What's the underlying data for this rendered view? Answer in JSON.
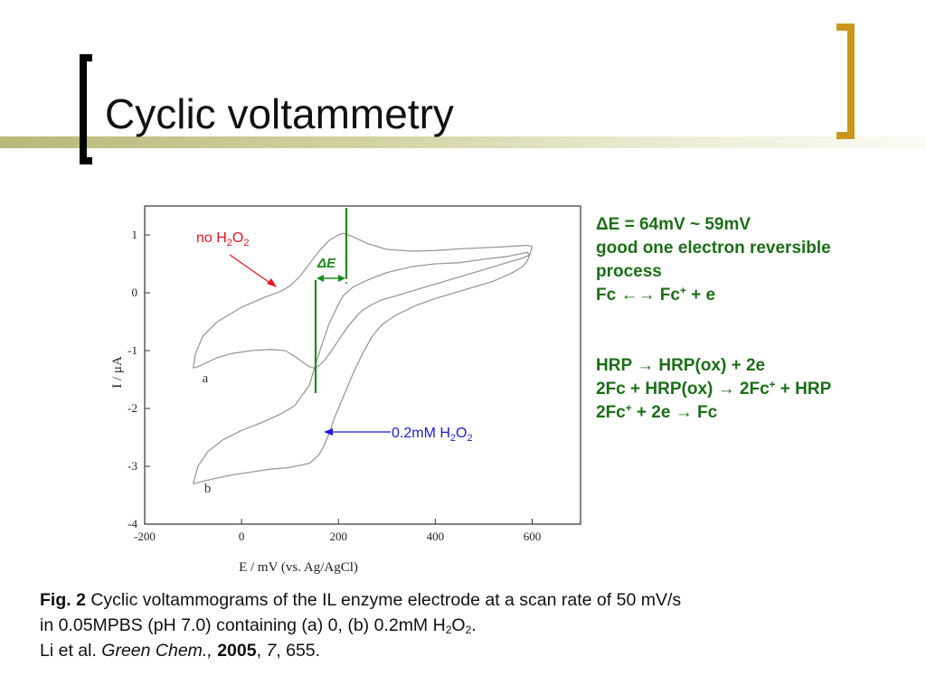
{
  "slide": {
    "title": "Cyclic voltammetry"
  },
  "notes": {
    "delta_e": "ΔE = 64mV ~ 59mV",
    "reversible_1": "good one electron reversible",
    "reversible_2": "process",
    "fc_left": "Fc",
    "fc_right_base": "Fc",
    "fc_right_sup": "+",
    "fc_right_tail": " + e",
    "hrp_1_left": "HRP",
    "hrp_1_right": "HRP(ox) + 2e",
    "hrp_2_left": "2Fc + HRP(ox)",
    "hrp_2_right_base": "2Fc",
    "hrp_2_right_sup": "+",
    "hrp_2_right_tail": " + HRP",
    "hrp_3_left_base": "2Fc",
    "hrp_3_left_sup": "+",
    "hrp_3_left_tail": " + 2e",
    "hrp_3_right": "Fc",
    "arrow_both": "←→",
    "arrow_right": "→"
  },
  "caption": {
    "fig_label": "Fig. 2",
    "line1": " Cyclic voltammograms of the IL enzyme electrode at a scan rate of 50 mV/s",
    "line2_a": "in 0.05MPBS (pH 7.0) containing (a) 0, (b) 0.2mM H",
    "line2_sub": "2",
    "line2_b": "O",
    "line2_sub2": "2",
    "line2_c": ".",
    "ref_authors": "Li et al. ",
    "ref_journal": "Green Chem.,",
    "ref_sep1": " ",
    "ref_year": "2005",
    "ref_sep2": ", ",
    "ref_volume": "7",
    "ref_pages": ", 655."
  },
  "chart_data": {
    "type": "line",
    "title": "",
    "xlabel": "E / mV (vs. Ag/AgCl)",
    "ylabel": "I / μA",
    "xlim": [
      -200,
      700
    ],
    "ylim": [
      -4,
      1.5
    ],
    "x_ticks": [
      -200,
      0,
      200,
      400,
      600
    ],
    "x_tick_labels": [
      "-200",
      "0",
      "200",
      "400",
      "600"
    ],
    "y_ticks": [
      1,
      0,
      -1,
      -2,
      -3,
      -4
    ],
    "y_tick_labels": [
      "1",
      "0",
      "-1",
      "-2",
      "-3",
      "-4"
    ],
    "grid": false,
    "series": [
      {
        "name": "a",
        "color": "#9a9a9a",
        "x": [
          -100,
          -95,
          -80,
          -50,
          0,
          50,
          80,
          100,
          120,
          140,
          160,
          180,
          200,
          210,
          230,
          260,
          300,
          350,
          400,
          450,
          500,
          550,
          590,
          600,
          595,
          580,
          560,
          520,
          480,
          440,
          400,
          360,
          320,
          290,
          270,
          250,
          240,
          230,
          220,
          210,
          200,
          190,
          180,
          170,
          160,
          150,
          140,
          130,
          110,
          90,
          60,
          20,
          -20,
          -50,
          -70,
          -90,
          -100
        ],
        "y": [
          -1.3,
          -1.05,
          -0.75,
          -0.5,
          -0.25,
          -0.07,
          0.02,
          0.12,
          0.28,
          0.5,
          0.72,
          0.9,
          1.0,
          1.03,
          0.97,
          0.85,
          0.75,
          0.72,
          0.73,
          0.76,
          0.78,
          0.8,
          0.82,
          0.8,
          0.65,
          0.6,
          0.55,
          0.45,
          0.35,
          0.25,
          0.15,
          0.05,
          -0.05,
          -0.12,
          -0.2,
          -0.3,
          -0.38,
          -0.48,
          -0.58,
          -0.7,
          -0.82,
          -0.95,
          -1.07,
          -1.18,
          -1.26,
          -1.3,
          -1.28,
          -1.22,
          -1.1,
          -1.0,
          -0.98,
          -1.0,
          -1.05,
          -1.12,
          -1.2,
          -1.28,
          -1.3
        ]
      },
      {
        "name": "b",
        "color": "#9a9a9a",
        "x": [
          -100,
          -90,
          -70,
          -40,
          0,
          40,
          80,
          110,
          140,
          150,
          160,
          180,
          200,
          210,
          230,
          260,
          300,
          350,
          400,
          450,
          500,
          550,
          590,
          595,
          590,
          580,
          560,
          520,
          480,
          440,
          400,
          360,
          320,
          290,
          270,
          250,
          230,
          210,
          190,
          180,
          170,
          160,
          140,
          100,
          60,
          20,
          -20,
          -60,
          -100
        ],
        "y": [
          -3.3,
          -3.0,
          -2.75,
          -2.55,
          -2.38,
          -2.25,
          -2.1,
          -1.95,
          -1.6,
          -1.32,
          -1.05,
          -0.55,
          -0.2,
          -0.05,
          0.1,
          0.22,
          0.35,
          0.45,
          0.5,
          0.52,
          0.58,
          0.63,
          0.7,
          0.65,
          0.55,
          0.45,
          0.35,
          0.2,
          0.1,
          0.0,
          -0.1,
          -0.22,
          -0.38,
          -0.55,
          -0.75,
          -1.05,
          -1.4,
          -1.8,
          -2.2,
          -2.45,
          -2.65,
          -2.8,
          -2.95,
          -3.02,
          -3.05,
          -3.1,
          -3.15,
          -3.22,
          -3.3
        ]
      }
    ],
    "curve_labels": [
      {
        "text": "a",
        "x": -75,
        "y": -1.55
      },
      {
        "text": "b",
        "x": -70,
        "y": -3.45
      }
    ],
    "annotations": {
      "no_h2o2_base": "no H",
      "no_h2o2_sub1": "2",
      "no_h2o2_o": "O",
      "no_h2o2_sub2": "2",
      "h2o2_base": "0.2mM H",
      "h2o2_sub1": "2",
      "h2o2_o": "O",
      "h2o2_sub2": "2",
      "delta_e_label": "ΔE",
      "peak_cathodic_e": 143,
      "peak_anodic_e": 207,
      "colors": {
        "red": "#e8141c",
        "blue": "#1c1cd2",
        "green": "#1b8a1b"
      }
    }
  }
}
